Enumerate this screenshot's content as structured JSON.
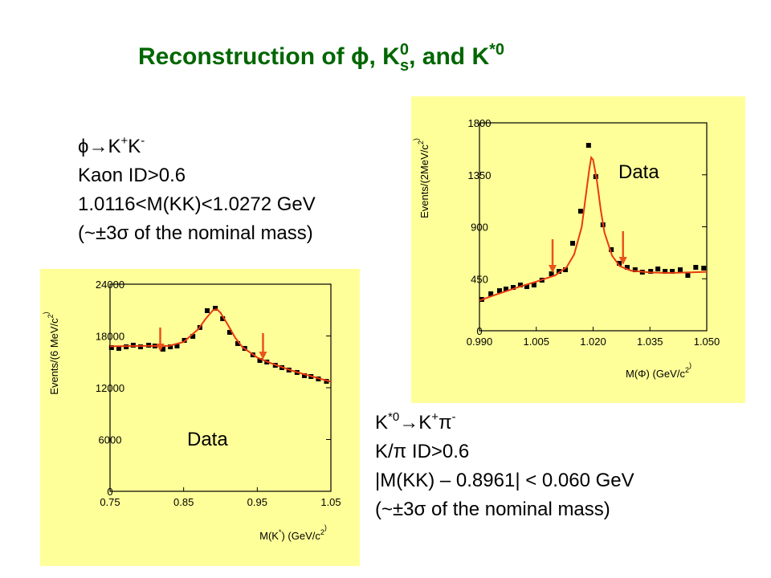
{
  "title": [
    "Reconstruction of ",
    "ϕ",
    ", K",
    "0",
    "s",
    ", and K",
    "*0"
  ],
  "notes": [
    {
      "lines": [
        [
          "ϕ→K",
          "+",
          "K",
          "-"
        ],
        [
          "Kaon ID>0.6"
        ],
        [
          "1.0116<M(KK)<1.0272 GeV"
        ],
        [
          "(~±3σ of the nominal mass)"
        ]
      ]
    },
    {
      "lines": [
        [
          "K",
          "*0",
          "→K",
          "+",
          "π",
          "-"
        ],
        [
          "K/π ID>0.6"
        ],
        [
          "|M(KK) – 0.8961| < 0.060 GeV"
        ],
        [
          "(~±3σ of the nominal mass)"
        ]
      ]
    }
  ],
  "chart_data": [
    {
      "type": "scatter",
      "annotation": "Data",
      "xlabel": [
        "M(Φ) (GeV/c",
        "2",
        ")"
      ],
      "ylabel": [
        "Events/(2MeV/c",
        "2",
        ")"
      ],
      "xlim": [
        0.99,
        1.05
      ],
      "ylim": [
        0,
        1800
      ],
      "xticks": [
        {
          "value": 0.99,
          "label": "0.990"
        },
        1.005,
        {
          "value": 1.02,
          "label": "1.020"
        },
        1.035,
        {
          "value": 1.05,
          "label": "1.050"
        }
      ],
      "yticks": [
        0,
        450,
        900,
        1350,
        1800
      ],
      "background": "#ffff99",
      "series": [
        {
          "color": "#000000",
          "marker": "square",
          "x": [
            0.9906,
            0.993,
            0.9953,
            0.997,
            0.9989,
            1.0008,
            1.0025,
            1.0044,
            1.0065,
            1.009,
            1.011,
            1.0127,
            1.0146,
            1.0167,
            1.0188,
            1.0207,
            1.0226,
            1.0248,
            1.0269,
            1.029,
            1.0311,
            1.033,
            1.0352,
            1.0371,
            1.039,
            1.0409,
            1.043,
            1.045,
            1.0471,
            1.0492
          ],
          "values": [
            271,
            320,
            347,
            361,
            375,
            396,
            382,
            396,
            438,
            493,
            514,
            528,
            757,
            1035,
            1605,
            1334,
            917,
            702,
            584,
            549,
            528,
            507,
            514,
            535,
            514,
            514,
            528,
            479,
            549,
            542
          ]
        },
        {
          "color": "#e83a10",
          "marker": "line",
          "x": [
            0.99,
            0.995,
            1.0,
            1.005,
            1.01,
            1.013,
            1.015,
            1.017,
            1.018,
            1.019,
            1.0195,
            1.02,
            1.021,
            1.022,
            1.023,
            1.025,
            1.027,
            1.03,
            1.035,
            1.04,
            1.045,
            1.05
          ],
          "values": [
            262,
            320,
            375,
            425,
            480,
            550,
            660,
            900,
            1150,
            1400,
            1500,
            1480,
            1300,
            1050,
            850,
            650,
            560,
            520,
            505,
            500,
            505,
            510
          ]
        }
      ],
      "arrows": {
        "color": "#e8541c",
        "items": [
          {
            "x": 1.0093,
            "from": 792,
            "to": 500
          },
          {
            "x": 1.0279,
            "from": 862,
            "to": 570
          }
        ]
      }
    },
    {
      "type": "scatter",
      "annotation": "Data",
      "xlabel": [
        "M(K",
        "*",
        ") (GeV/c",
        "2",
        ")"
      ],
      "ylabel": [
        "Events/(6 MeV/c",
        "2",
        ")"
      ],
      "xlim": [
        0.75,
        1.05
      ],
      "ylim": [
        0,
        24000
      ],
      "xticks": [
        0.75,
        0.85,
        0.95,
        1.05
      ],
      "yticks": [
        0,
        6000,
        12000,
        18000,
        24000
      ],
      "background": "#ffff99",
      "series": [
        {
          "color": "#000000",
          "marker": "square",
          "x": [
            0.752,
            0.762,
            0.772,
            0.7815,
            0.7915,
            0.8025,
            0.811,
            0.822,
            0.832,
            0.841,
            0.851,
            0.8625,
            0.872,
            0.882,
            0.893,
            0.903,
            0.9125,
            0.9235,
            0.933,
            0.944,
            0.9535,
            0.963,
            0.9745,
            0.9835,
            0.993,
            1.004,
            1.014,
            1.023,
            1.033,
            1.044
          ],
          "values": [
            16650,
            16560,
            16740,
            16930,
            16740,
            16930,
            16840,
            16470,
            16740,
            16840,
            17490,
            17950,
            18980,
            20930,
            21210,
            20000,
            18420,
            17120,
            16560,
            15810,
            15160,
            14980,
            14600,
            14330,
            14050,
            13770,
            13400,
            13300,
            13020,
            12740
          ]
        },
        {
          "color": "#e83a10",
          "marker": "line",
          "x": [
            0.75,
            0.8,
            0.83,
            0.85,
            0.87,
            0.88,
            0.89,
            0.895,
            0.9,
            0.91,
            0.92,
            0.93,
            0.95,
            0.97,
            1.0,
            1.05
          ],
          "values": [
            16800,
            16850,
            16850,
            17300,
            18800,
            20000,
            21000,
            21100,
            20700,
            19300,
            17800,
            16700,
            15500,
            14800,
            13900,
            12700
          ]
        }
      ],
      "arrows": {
        "color": "#e8541c",
        "items": [
          {
            "x": 0.8182,
            "from": 18980,
            "to": 16190
          },
          {
            "x": 0.9578,
            "from": 18330,
            "to": 15260
          }
        ]
      }
    }
  ]
}
